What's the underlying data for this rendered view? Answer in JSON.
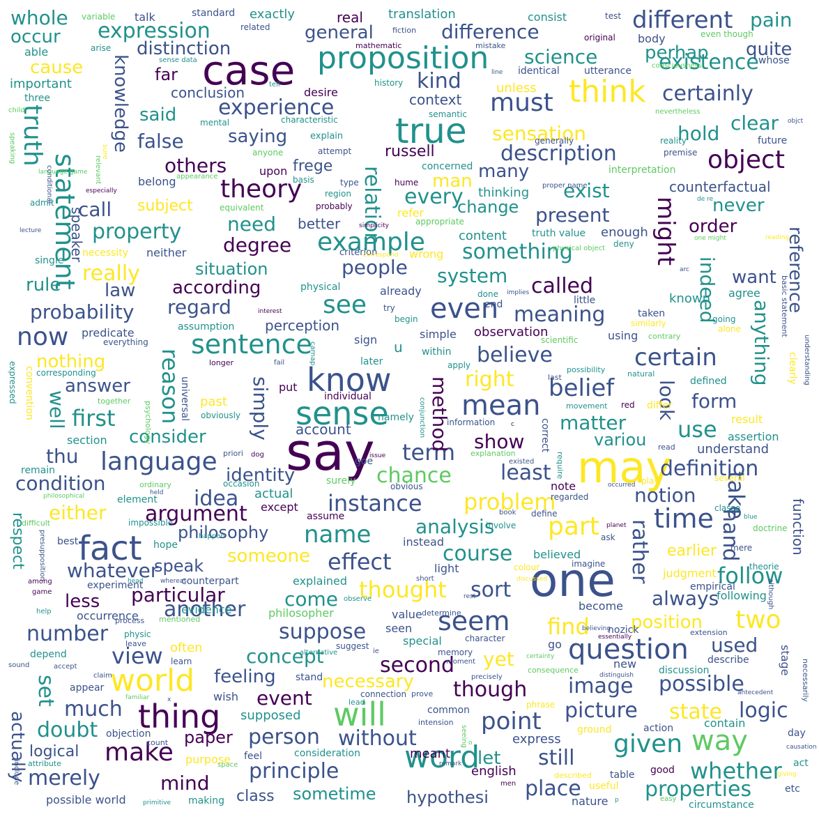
{
  "palette": {
    "purple": "#440154",
    "indigo": "#3b528b",
    "teal": "#21918c",
    "green": "#5ec962",
    "yellow": "#fde725"
  },
  "words": [
    "say",
    "one",
    "case",
    "may",
    "proposition",
    "true",
    "think",
    "will",
    "word",
    "world",
    "thing",
    "know",
    "sense",
    "fact",
    "question",
    "way",
    "given",
    "sentence",
    "mean",
    "theory",
    "statement",
    "truth",
    "different",
    "must",
    "language",
    "object",
    "example",
    "seem",
    "two",
    "see",
    "even",
    "make",
    "belief",
    "part",
    "time",
    "term",
    "name",
    "point",
    "picture",
    "logic",
    "possible",
    "state",
    "whether",
    "properties",
    "principle",
    "place",
    "without",
    "still",
    "another",
    "suppose",
    "concept",
    "second",
    "though",
    "view",
    "relation",
    "might",
    "knowledge",
    "experience",
    "existence",
    "description",
    "expression",
    "general",
    "pain",
    "occur",
    "whole",
    "difference",
    "science",
    "perhap",
    "certainly",
    "quite",
    "distinction",
    "cause",
    "kind",
    "false",
    "saying",
    "said",
    "others",
    "man",
    "many",
    "every",
    "need",
    "property",
    "call",
    "subject",
    "present",
    "order",
    "never",
    "counterfactual",
    "something",
    "degree",
    "really",
    "people",
    "system",
    "called",
    "want",
    "rule",
    "law",
    "according",
    "regard",
    "probability",
    "meaning",
    "indeed",
    "reference",
    "now",
    "believe",
    "certain",
    "anything",
    "nothing",
    "answer",
    "well",
    "first",
    "reason",
    "simply",
    "method",
    "right",
    "look",
    "form",
    "use",
    "matter",
    "consider",
    "thu",
    "show",
    "variou",
    "condition",
    "chance",
    "least",
    "definition",
    "identity",
    "idea",
    "instance",
    "problem",
    "notion",
    "take",
    "either",
    "argument",
    "analysis",
    "philosophy",
    "hand",
    "rather",
    "effect",
    "course",
    "someone",
    "whatever",
    "speak",
    "less",
    "particular",
    "come",
    "thought",
    "sort",
    "always",
    "follow",
    "number",
    "find",
    "position",
    "used",
    "yet",
    "image",
    "set",
    "feeling",
    "event",
    "necessary",
    "much",
    "doubt",
    "person",
    "paper",
    "merely",
    "mind",
    "logical",
    "actually",
    "sometime",
    "hypothesi",
    "class",
    "english",
    "meant",
    "let",
    "express",
    "respect",
    "perception",
    "situation",
    "experience",
    "content",
    "change",
    "exist",
    "refer",
    "better",
    "truth value",
    "enough",
    "hold",
    "clear",
    "sensation",
    "context",
    "russell",
    "frege",
    "upon",
    "speaker",
    "far",
    "conclusion",
    "important",
    "able",
    "standard",
    "variable",
    "talk",
    "exactly",
    "real",
    "translation",
    "consist",
    "test",
    "original",
    "body",
    "even though",
    "related",
    "fiction",
    "mathematic",
    "mistake",
    "arise",
    "sense data",
    "history",
    "tell",
    "desire",
    "unless",
    "identical",
    "utterance",
    "consciousness",
    "whose",
    "three",
    "child",
    "mental",
    "characteristic",
    "explain",
    "semantic",
    "generally",
    "nevertheless",
    "reality",
    "future",
    "premise",
    "interpretation",
    "anyone",
    "attempt",
    "concerned",
    "basis",
    "type",
    "hume",
    "region",
    "thinking",
    "proper name",
    "appearance",
    "belong",
    "equivalent",
    "probably",
    "simplicity",
    "appropriate",
    "lecture",
    "admit",
    "especially",
    "conditional",
    "relevant",
    "sure",
    "speaking",
    "necessity",
    "neither",
    "single",
    "criterion",
    "wrong",
    "deny",
    "physical object",
    "basic statement",
    "physical",
    "already",
    "done",
    "implies",
    "little",
    "agree",
    "known",
    "interest",
    "try",
    "begin",
    "end",
    "similarly",
    "taken",
    "going",
    "alone",
    "predicate",
    "assumption",
    "simple",
    "observation",
    "scientific",
    "using",
    "contrary",
    "everything",
    "sign",
    "within",
    "later",
    "apply",
    "longer",
    "fail",
    "carnap",
    "possibility",
    "last",
    "natural",
    "defined",
    "clearly",
    "understanding",
    "universal",
    "corresponding",
    "convention",
    "expressed",
    "together",
    "psychology",
    "individual",
    "past",
    "put",
    "movement",
    "red",
    "differ",
    "obviously",
    "namely",
    "conjunction",
    "information",
    "account",
    "result",
    "assertion",
    "section",
    "understand",
    "priori",
    "dog",
    "read",
    "remain",
    "goe",
    "issue",
    "explanation",
    "existed",
    "surely",
    "require",
    "correct",
    "ordinary",
    "obvious",
    "occasion",
    "note",
    "occurred",
    "play",
    "quine",
    "several",
    "held",
    "philosophical",
    "actual",
    "regarded",
    "except",
    "element",
    "book",
    "define",
    "classe",
    "function",
    "assume",
    "impossible",
    "difficult",
    "instead",
    "involve",
    "planet",
    "blue",
    "doctrine",
    "hope",
    "ask",
    "best",
    "presupposition",
    "happen",
    "believed",
    "imagine",
    "earlier",
    "mere",
    "theorie",
    "light",
    "colour",
    "judgment",
    "experiment",
    "head",
    "whereas",
    "counterpart",
    "rest",
    "empirical",
    "although",
    "explained",
    "short",
    "among",
    "discussed",
    "game",
    "observe",
    "following",
    "become",
    "occurrence",
    "evidence",
    "help",
    "process",
    "mentioned",
    "determine",
    "believing",
    "value",
    "philosopher",
    "essentially",
    "nozick",
    "extension",
    "character",
    "seen",
    "special",
    "physic",
    "leave",
    "often",
    "suggest",
    "alternative",
    "ie",
    "memory",
    "moment",
    "certainty",
    "distinguish",
    "describe",
    "depend",
    "go",
    "new",
    "stage",
    "necessarily",
    "discussion",
    "sound",
    "accept",
    "learn",
    "claim",
    "consequence",
    "precisely",
    "appear",
    "familiar",
    "connection",
    "prove",
    "antecedent",
    "lead",
    "stand",
    "wish",
    "supposed",
    "common",
    "phrase",
    "intension",
    "objection",
    "contain",
    "action",
    "ground",
    "day",
    "nature",
    "seeing",
    "count",
    "feel",
    "consideration",
    "causation",
    "include",
    "purpose",
    "attribute",
    "space",
    "remark",
    "possible world",
    "men",
    "making",
    "good",
    "giving",
    "primitive",
    "table",
    "useful",
    "easy",
    "circumstance",
    "etc",
    "described",
    "act",
    "one might",
    "correspond",
    "language game",
    "de re",
    "objct",
    "reading",
    "arc",
    "line",
    "x",
    "o",
    "c",
    "p",
    "u"
  ]
}
